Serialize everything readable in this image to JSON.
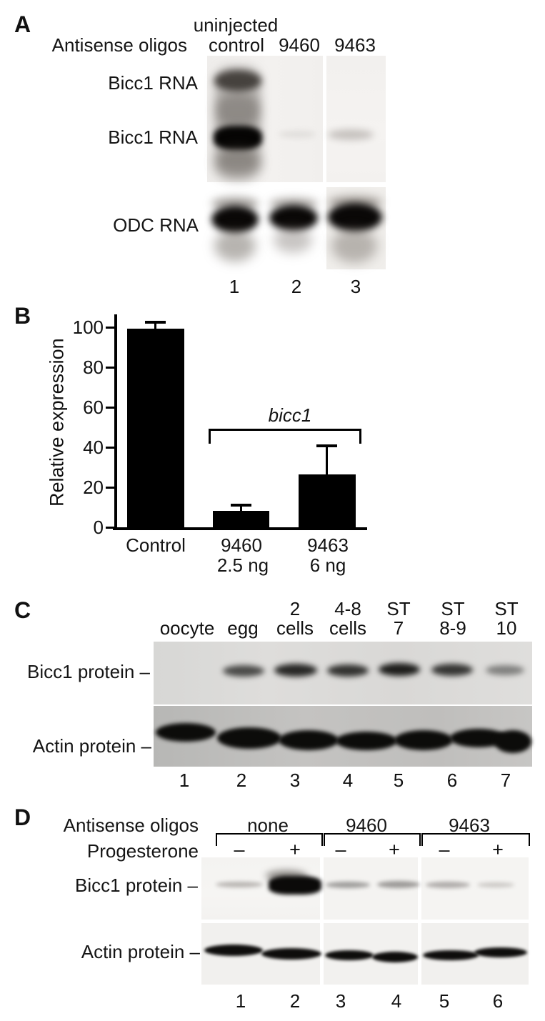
{
  "figure": {
    "type": "scientific-figure",
    "panels": [
      "A",
      "B",
      "C",
      "D"
    ]
  },
  "panelA": {
    "letter": "A",
    "row_label": "Antisense oligos",
    "col_top_label": "uninjected",
    "col_labels": [
      "control",
      "9460",
      "9463"
    ],
    "band_label_1": "Bicc1 RNA",
    "band_label_2": "Bicc1 RNA",
    "band_label_3": "ODC RNA",
    "lane_numbers": [
      "1",
      "2",
      "3"
    ]
  },
  "panelB": {
    "letter": "B"
  },
  "chart_data": {
    "type": "bar",
    "title": "",
    "ylabel": "Relative expression",
    "xlabel": "",
    "categories": [
      "Control",
      "9460",
      "9463"
    ],
    "doses": [
      "",
      "2.5 ng",
      "6 ng"
    ],
    "values": [
      100,
      9,
      27
    ],
    "errors_plus": [
      4,
      3.5,
      15
    ],
    "y_ticks": [
      0,
      20,
      40,
      60,
      80,
      100
    ],
    "ylim": [
      0,
      108
    ],
    "grid": "off",
    "bar_color": "#000000",
    "annotation": "bicc1",
    "annotation_spans_categories": [
      "9460",
      "9463"
    ]
  },
  "panelC": {
    "letter": "C",
    "col_headers": [
      [
        "",
        "oocyte"
      ],
      [
        "",
        "egg"
      ],
      [
        "2",
        "cells"
      ],
      [
        "4-8",
        "cells"
      ],
      [
        "ST",
        "7"
      ],
      [
        "ST",
        "8-9"
      ],
      [
        "ST",
        "10"
      ]
    ],
    "row_label_1": "Bicc1 protein –",
    "row_label_2": "Actin protein –",
    "lane_numbers": [
      "1",
      "2",
      "3",
      "4",
      "5",
      "6",
      "7"
    ]
  },
  "panelD": {
    "letter": "D",
    "row_label_top": "Antisense oligos",
    "row_label_bottom": "Progesterone",
    "group_labels": [
      "none",
      "9460",
      "9463"
    ],
    "signs": [
      "–",
      "+",
      "–",
      "+",
      "–",
      "+"
    ],
    "row_label_1": "Bicc1 protein –",
    "row_label_2": "Actin protein –",
    "lane_numbers": [
      "1",
      "2",
      "3",
      "4",
      "5",
      "6"
    ]
  }
}
